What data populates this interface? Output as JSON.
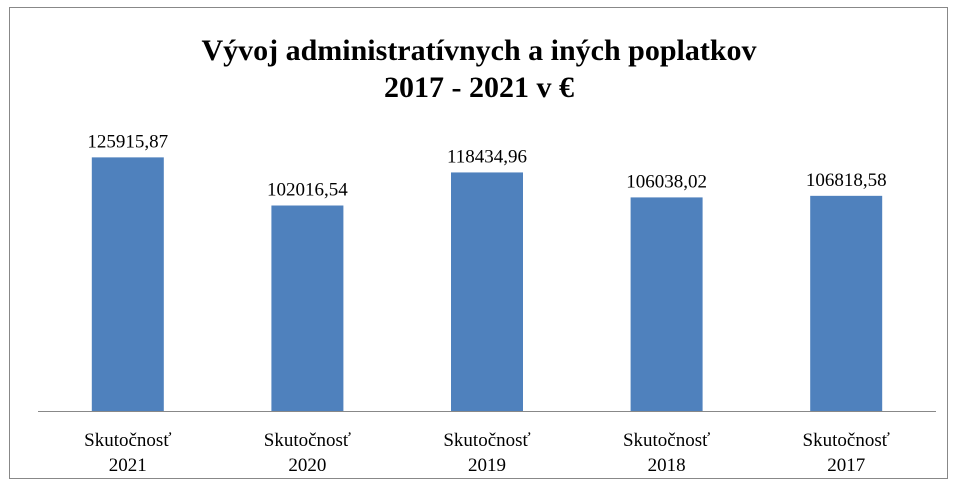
{
  "chart_data": {
    "type": "bar",
    "title": "Vývoj administratívnych a iných poplatkov",
    "subtitle": "2017 - 2021 v €",
    "categories": [
      "Skutočnosť 2021",
      "Skutočnosť 2020",
      "Skutočnosť 2019",
      "Skutočnosť 2018",
      "Skutočnosť 2017"
    ],
    "values": [
      125915.87,
      102016.54,
      118434.96,
      106038.02,
      106818.58
    ],
    "value_labels": [
      "125915,87",
      "102016,54",
      "118434,96",
      "106038,02",
      "106818,58"
    ],
    "color": "#4f81bd",
    "ylim": [
      0,
      140000
    ]
  }
}
